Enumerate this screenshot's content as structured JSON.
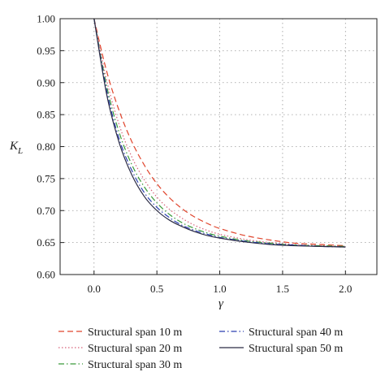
{
  "chart_data": {
    "type": "line",
    "xlabel": "γ",
    "ylabel_main": "K",
    "ylabel_sub": "L",
    "xlim": [
      -0.27,
      2.25
    ],
    "ylim": [
      0.6,
      1.0
    ],
    "x_ticks": [
      "0.0",
      "0.5",
      "1.0",
      "1.5",
      "2.0"
    ],
    "x_tick_values": [
      0.0,
      0.5,
      1.0,
      1.5,
      2.0
    ],
    "y_ticks": [
      "0.60",
      "0.65",
      "0.70",
      "0.75",
      "0.80",
      "0.85",
      "0.90",
      "0.95",
      "1.00"
    ],
    "y_tick_values": [
      0.6,
      0.65,
      0.7,
      0.75,
      0.8,
      0.85,
      0.9,
      0.95,
      1.0
    ],
    "grid": true,
    "legend_position": "bottom",
    "x": [
      0.0,
      0.1,
      0.2,
      0.3,
      0.4,
      0.5,
      0.6,
      0.7,
      0.8,
      0.9,
      1.0,
      1.2,
      1.4,
      1.6,
      1.8,
      2.0
    ],
    "series": [
      {
        "name": "Structural span 10 m",
        "color": "#e0442c",
        "dash": "dashed",
        "values": [
          1.0,
          0.918,
          0.856,
          0.808,
          0.771,
          0.742,
          0.72,
          0.703,
          0.69,
          0.68,
          0.672,
          0.661,
          0.654,
          0.649,
          0.647,
          0.645
        ]
      },
      {
        "name": "Structural span 20 m",
        "color": "#d6627a",
        "dash": "dotted",
        "values": [
          1.0,
          0.904,
          0.834,
          0.784,
          0.748,
          0.721,
          0.702,
          0.688,
          0.677,
          0.669,
          0.663,
          0.655,
          0.65,
          0.647,
          0.645,
          0.644
        ]
      },
      {
        "name": "Structural span 30 m",
        "color": "#3a9a3a",
        "dash": "dashdot",
        "values": [
          1.0,
          0.895,
          0.822,
          0.772,
          0.737,
          0.712,
          0.694,
          0.681,
          0.672,
          0.665,
          0.66,
          0.653,
          0.649,
          0.646,
          0.645,
          0.644
        ]
      },
      {
        "name": "Structural span 40 m",
        "color": "#2a3fb0",
        "dash": "dashdot",
        "values": [
          1.0,
          0.888,
          0.812,
          0.763,
          0.728,
          0.705,
          0.689,
          0.677,
          0.669,
          0.663,
          0.658,
          0.652,
          0.648,
          0.646,
          0.644,
          0.643
        ]
      },
      {
        "name": "Structural span 50 m",
        "color": "#2b2b44",
        "dash": "solid",
        "values": [
          1.0,
          0.882,
          0.806,
          0.756,
          0.722,
          0.7,
          0.685,
          0.675,
          0.667,
          0.661,
          0.657,
          0.651,
          0.647,
          0.645,
          0.644,
          0.643
        ]
      }
    ]
  }
}
